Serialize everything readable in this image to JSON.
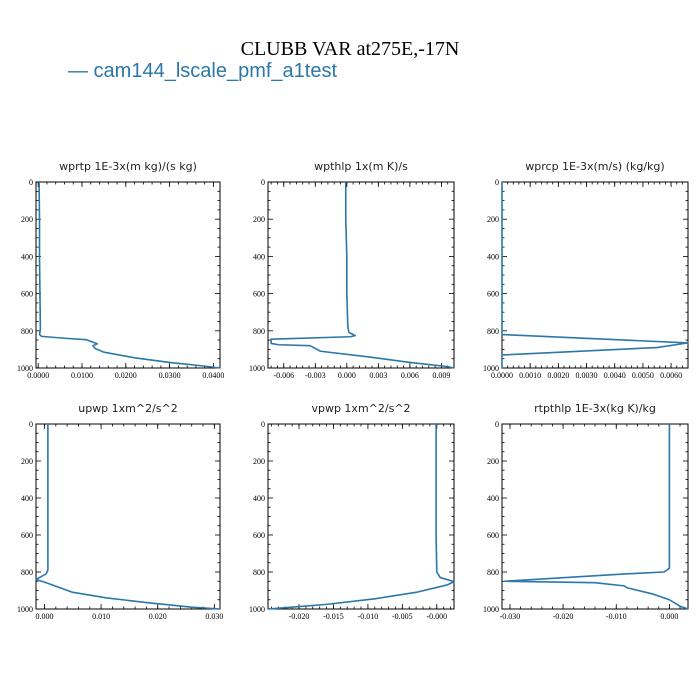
{
  "figure": {
    "title": "CLUBB VAR at275E,-17N",
    "legend": "— cam144_lscale_pmf_a1test",
    "series_color": "#2a77a8"
  },
  "chart_data": [
    {
      "type": "line",
      "title": "wprtp  1E-3x(m kg)/(s kg)",
      "xlim": [
        -0.0005,
        0.0415
      ],
      "ylim": [
        1000,
        0
      ],
      "xticks": [
        0,
        0.01,
        0.02,
        0.03,
        0.04
      ],
      "xtick_labels": [
        "0.0000",
        "0.0100",
        "0.0200",
        "0.0300",
        "0.0400"
      ],
      "yticks": [
        0,
        200,
        400,
        600,
        800,
        1000
      ],
      "ytick_labels": [
        "0",
        "200",
        "400",
        "600",
        "800",
        "1000"
      ],
      "series": [
        {
          "x": [
            0.0002,
            0.0003,
            0.0003,
            0.0004,
            0.0005,
            0.0003,
            0.0008,
            0.006,
            0.011,
            0.0135,
            0.0125,
            0.013,
            0.015,
            0.022,
            0.03,
            0.038,
            0.0415
          ],
          "y": [
            0,
            200,
            400,
            600,
            790,
            820,
            830,
            840,
            848,
            870,
            880,
            895,
            915,
            945,
            970,
            990,
            1000
          ]
        }
      ]
    },
    {
      "type": "line",
      "title": "wpthlp  1x(m K)/s",
      "xlim": [
        -0.0075,
        0.0102
      ],
      "ylim": [
        1000,
        0
      ],
      "xticks": [
        -0.006,
        -0.003,
        0,
        0.003,
        0.006,
        0.009
      ],
      "xtick_labels": [
        "-0.006",
        "-0.003",
        "0.000",
        "0.003",
        "0.006",
        "0.009"
      ],
      "yticks": [
        0,
        200,
        400,
        600,
        800,
        1000
      ],
      "ytick_labels": [
        "0",
        "200",
        "400",
        "600",
        "800",
        "1000"
      ],
      "series": [
        {
          "x": [
            -0.0001,
            -0.0001,
            0,
            0,
            0.0001,
            0.0002,
            0.0008,
            0.0003,
            -0.0072,
            -0.0072,
            -0.0065,
            -0.0035,
            -0.0025,
            0.002,
            0.006,
            0.0095,
            0.0102
          ],
          "y": [
            0,
            200,
            400,
            600,
            780,
            808,
            826,
            832,
            845,
            868,
            875,
            880,
            910,
            940,
            970,
            992,
            1000
          ]
        }
      ]
    },
    {
      "type": "line",
      "title": "wprcp  1E-3x(m/s) (kg/kg)",
      "xlim": [
        0,
        0.0066
      ],
      "ylim": [
        1000,
        0
      ],
      "xticks": [
        0,
        0.001,
        0.002,
        0.003,
        0.004,
        0.005,
        0.006
      ],
      "xtick_labels": [
        "0.0000",
        "0.0010",
        "0.0020",
        "0.0030",
        "0.0040",
        "0.0050",
        "0.0060"
      ],
      "yticks": [
        0,
        200,
        400,
        600,
        800,
        1000
      ],
      "ytick_labels": [
        "0",
        "200",
        "400",
        "600",
        "800",
        "1000"
      ],
      "series": [
        {
          "x": [
            0,
            0,
            0.0066,
            0.0055,
            0,
            0
          ],
          "y": [
            0,
            820,
            865,
            890,
            930,
            1000
          ]
        }
      ]
    },
    {
      "type": "line",
      "title": "upwp  1xm^2/s^2",
      "xlim": [
        -0.0015,
        0.031
      ],
      "ylim": [
        1000,
        0
      ],
      "xticks": [
        0,
        0.01,
        0.02,
        0.03
      ],
      "xtick_labels": [
        "0.000",
        "0.010",
        "0.020",
        "0.030"
      ],
      "yticks": [
        0,
        200,
        400,
        600,
        800,
        1000
      ],
      "ytick_labels": [
        "0",
        "200",
        "400",
        "600",
        "800",
        "1000"
      ],
      "series": [
        {
          "x": [
            0.0006,
            0.0006,
            0.0006,
            0.0006,
            0.0006,
            0.0003,
            -0.0015,
            0.0005,
            0.005,
            0.011,
            0.018,
            0.026,
            0.031
          ],
          "y": [
            0,
            200,
            400,
            600,
            790,
            810,
            840,
            860,
            910,
            940,
            965,
            990,
            1000
          ]
        }
      ]
    },
    {
      "type": "line",
      "title": "vpwp  1xm^2/s^2",
      "xlim": [
        -0.0245,
        0.0025
      ],
      "ylim": [
        1000,
        0
      ],
      "xticks": [
        -0.02,
        -0.015,
        -0.01,
        -0.005,
        0
      ],
      "xtick_labels": [
        "-0.020",
        "-0.015",
        "-0.010",
        "-0.005",
        "-0.000"
      ],
      "yticks": [
        0,
        200,
        400,
        600,
        800,
        1000
      ],
      "ytick_labels": [
        "0",
        "200",
        "400",
        "600",
        "800",
        "1000"
      ],
      "series": [
        {
          "x": [
            -0.0001,
            -0.0001,
            -0.0001,
            -0.0001,
            0,
            0.0005,
            0.0025,
            0.0015,
            -0.003,
            -0.009,
            -0.016,
            -0.022,
            -0.0245
          ],
          "y": [
            0,
            200,
            400,
            600,
            800,
            830,
            852,
            870,
            910,
            945,
            975,
            993,
            1000
          ]
        }
      ]
    },
    {
      "type": "line",
      "title": "rtpthlp  1E-3x(kg K)/kg",
      "xlim": [
        -0.0315,
        0.0035
      ],
      "ylim": [
        1000,
        0
      ],
      "xticks": [
        -0.03,
        -0.02,
        -0.01,
        0
      ],
      "xtick_labels": [
        "-0.030",
        "-0.020",
        "-0.010",
        "0.000"
      ],
      "yticks": [
        0,
        200,
        400,
        600,
        800,
        1000
      ],
      "ytick_labels": [
        "0",
        "200",
        "400",
        "600",
        "800",
        "1000"
      ],
      "series": [
        {
          "x": [
            0,
            0,
            0,
            0,
            0,
            -0.001,
            -0.008,
            -0.031,
            -0.014,
            -0.0085,
            -0.008,
            -0.003,
            0,
            0.002,
            0.0035
          ],
          "y": [
            0,
            200,
            400,
            600,
            780,
            800,
            810,
            850,
            858,
            875,
            885,
            920,
            950,
            985,
            1000
          ]
        }
      ]
    }
  ]
}
